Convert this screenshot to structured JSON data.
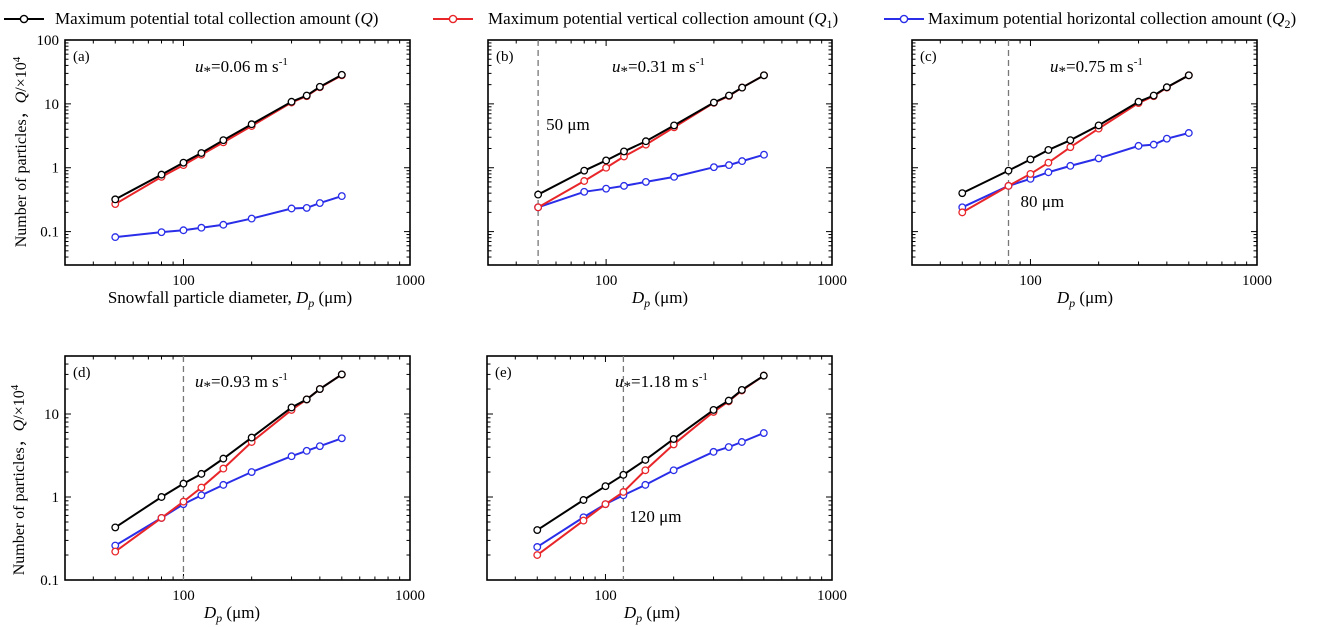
{
  "legend": [
    {
      "id": "Q",
      "label_text": "Maximum potential total collection amount (",
      "symbol": "Q",
      "subscript": "",
      "close": ")",
      "color": "#000000"
    },
    {
      "id": "Q1",
      "label_text": "Maximum potential vertical collection amount (",
      "symbol": "Q",
      "subscript": "1",
      "close": ")",
      "color": "#e8262a"
    },
    {
      "id": "Q2",
      "label_text": "Maximum potential horizontal collection amount (",
      "symbol": "Q",
      "subscript": "2",
      "close": ")",
      "color": "#2a2ee8"
    }
  ],
  "axis_text": {
    "ylabel_a_prefix": "Number of particles，",
    "ylabel_a_sym": "Q",
    "ylabel_a_unit": "/×10",
    "ylabel_a_exp": "4",
    "ylabel_d_prefix": "Number of particles，",
    "ylabel_d_sym": "Q",
    "ylabel_d_unit": "/×10",
    "ylabel_d_exp": "4",
    "xlabel_a_prefix": "Snowfall particle diameter, ",
    "xlabel_sym": "D",
    "xlabel_sub": "p",
    "xlabel_unit": " (μm)",
    "ustar_sym": "u",
    "ustar_star": "*",
    "ustar_unit": " m s",
    "ustar_exp": "-1"
  },
  "chart_data": [
    {
      "panel": "(a)",
      "type": "line",
      "xscale": "log",
      "yscale": "log",
      "xlim": [
        30,
        1000
      ],
      "ylim": [
        0.03,
        100
      ],
      "x_ticks": [
        100,
        1000
      ],
      "x_tick_labels": [
        "100",
        "1000"
      ],
      "y_ticks": [
        0.1,
        1,
        10,
        100
      ],
      "y_tick_labels": [
        "0.1",
        "1",
        "10",
        "100"
      ],
      "ustar": "=0.06",
      "threshold": null,
      "threshold_label": "",
      "x": [
        50,
        80,
        100,
        120,
        150,
        200,
        300,
        350,
        400,
        500
      ],
      "series": [
        {
          "id": "Q",
          "values": [
            0.32,
            0.78,
            1.2,
            1.7,
            2.7,
            4.8,
            10.8,
            13.5,
            18.5,
            28.5
          ]
        },
        {
          "id": "Q1",
          "values": [
            0.27,
            0.72,
            1.1,
            1.6,
            2.5,
            4.5,
            10.5,
            13.2,
            18.2,
            28
          ]
        },
        {
          "id": "Q2",
          "values": [
            0.082,
            0.098,
            0.105,
            0.115,
            0.128,
            0.16,
            0.23,
            0.235,
            0.28,
            0.36
          ]
        }
      ]
    },
    {
      "panel": "(b)",
      "type": "line",
      "xscale": "log",
      "yscale": "log",
      "xlim": [
        30,
        1000
      ],
      "ylim": [
        0.03,
        100
      ],
      "x_ticks": [
        100,
        1000
      ],
      "x_tick_labels": [
        "100",
        "1000"
      ],
      "y_ticks": [
        0.1,
        1,
        10,
        100
      ],
      "y_tick_labels": [
        "",
        "",
        "",
        ""
      ],
      "ustar": "=0.31",
      "threshold": 50,
      "threshold_label": "50 μm",
      "x": [
        50,
        80,
        100,
        120,
        150,
        200,
        300,
        350,
        400,
        500
      ],
      "series": [
        {
          "id": "Q",
          "values": [
            0.38,
            0.9,
            1.3,
            1.8,
            2.6,
            4.6,
            10.5,
            13.5,
            18,
            28
          ]
        },
        {
          "id": "Q1",
          "values": [
            0.24,
            0.62,
            1.0,
            1.5,
            2.3,
            4.3,
            10.4,
            13.3,
            18,
            28
          ]
        },
        {
          "id": "Q2",
          "values": [
            0.24,
            0.42,
            0.47,
            0.52,
            0.6,
            0.72,
            1.02,
            1.1,
            1.27,
            1.6
          ]
        }
      ]
    },
    {
      "panel": "(c)",
      "type": "line",
      "xscale": "log",
      "yscale": "log",
      "xlim": [
        30,
        1000
      ],
      "ylim": [
        0.03,
        100
      ],
      "x_ticks": [
        100,
        1000
      ],
      "x_tick_labels": [
        "100",
        "1000"
      ],
      "y_ticks": [
        0.1,
        1,
        10,
        100
      ],
      "y_tick_labels": [
        "",
        "",
        "",
        ""
      ],
      "ustar": "=0.75",
      "threshold": 80,
      "threshold_label": "80 μm",
      "x": [
        50,
        80,
        100,
        120,
        150,
        200,
        300,
        350,
        400,
        500
      ],
      "series": [
        {
          "id": "Q",
          "values": [
            0.4,
            0.9,
            1.35,
            1.9,
            2.7,
            4.6,
            10.8,
            13.5,
            18.2,
            28
          ]
        },
        {
          "id": "Q1",
          "values": [
            0.2,
            0.52,
            0.8,
            1.2,
            2.1,
            4.1,
            10.3,
            13.2,
            18,
            28
          ]
        },
        {
          "id": "Q2",
          "values": [
            0.24,
            0.52,
            0.67,
            0.85,
            1.07,
            1.4,
            2.2,
            2.3,
            2.85,
            3.5
          ]
        }
      ]
    },
    {
      "panel": "(d)",
      "type": "line",
      "xscale": "log",
      "yscale": "log",
      "xlim": [
        30,
        1000
      ],
      "ylim": [
        0.1,
        50
      ],
      "x_ticks": [
        100,
        1000
      ],
      "x_tick_labels": [
        "100",
        "1000"
      ],
      "y_ticks": [
        0.1,
        1,
        10
      ],
      "y_tick_labels": [
        "0.1",
        "1",
        "10"
      ],
      "ustar": "=0.93",
      "threshold": 100,
      "threshold_label": "",
      "x": [
        50,
        80,
        100,
        120,
        150,
        200,
        300,
        350,
        400,
        500
      ],
      "series": [
        {
          "id": "Q",
          "values": [
            0.43,
            1.0,
            1.45,
            1.9,
            2.9,
            5.2,
            12,
            15,
            20,
            30
          ]
        },
        {
          "id": "Q1",
          "values": [
            0.22,
            0.56,
            0.88,
            1.3,
            2.2,
            4.6,
            11.2,
            15,
            20,
            30
          ]
        },
        {
          "id": "Q2",
          "values": [
            0.26,
            0.56,
            0.82,
            1.05,
            1.4,
            2.0,
            3.1,
            3.6,
            4.1,
            5.1
          ]
        }
      ]
    },
    {
      "panel": "(e)",
      "type": "line",
      "xscale": "log",
      "yscale": "log",
      "xlim": [
        30,
        1000
      ],
      "ylim": [
        0.1,
        50
      ],
      "x_ticks": [
        100,
        1000
      ],
      "x_tick_labels": [
        "100",
        "1000"
      ],
      "y_ticks": [
        0.1,
        1,
        10
      ],
      "y_tick_labels": [
        "",
        "",
        ""
      ],
      "ustar": "=1.18",
      "threshold": 120,
      "threshold_label": "120 μm",
      "x": [
        50,
        80,
        100,
        120,
        150,
        200,
        300,
        350,
        400,
        500
      ],
      "series": [
        {
          "id": "Q",
          "values": [
            0.4,
            0.92,
            1.35,
            1.85,
            2.8,
            5.0,
            11.2,
            14.5,
            19.5,
            29
          ]
        },
        {
          "id": "Q1",
          "values": [
            0.2,
            0.52,
            0.82,
            1.15,
            2.1,
            4.3,
            10.6,
            14.2,
            19.2,
            29
          ]
        },
        {
          "id": "Q2",
          "values": [
            0.25,
            0.57,
            0.82,
            1.05,
            1.4,
            2.1,
            3.5,
            4.0,
            4.6,
            5.9
          ]
        }
      ]
    }
  ]
}
